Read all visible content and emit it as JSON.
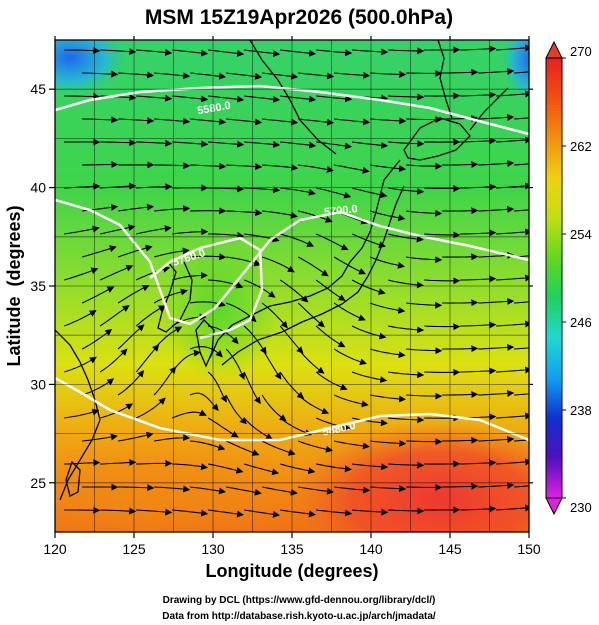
{
  "title": "MSM 15Z19Apr2026 (500.0hPa)",
  "x_axis": {
    "label": "Longitude (degrees)",
    "range": [
      120,
      150
    ],
    "ticks": [
      120,
      125,
      130,
      135,
      140,
      145,
      150
    ]
  },
  "y_axis": {
    "label": "Latitude  (degrees)",
    "range": [
      22.5,
      47.5
    ],
    "ticks": [
      25,
      30,
      35,
      40,
      45
    ]
  },
  "colorbar": {
    "range": [
      230,
      270
    ],
    "ticks": [
      230,
      238,
      246,
      254,
      262,
      270
    ],
    "colors": [
      "#e020e0",
      "#5010c0",
      "#1030d0",
      "#10a0f0",
      "#20d8d0",
      "#20d060",
      "#60d820",
      "#c0e010",
      "#f0d010",
      "#f09010",
      "#f05010",
      "#e82020"
    ]
  },
  "contours": [
    {
      "label": "5580.0"
    },
    {
      "label": "5700.0"
    },
    {
      "label": "5760.0"
    },
    {
      "label": "5880.0"
    }
  ],
  "credits": [
    "Drawing by DCL (https://www.gfd-dennou.org/library/dcl/)",
    "Data from http://database.rish.kyoto-u.ac.jp/arch/jmadata/"
  ]
}
